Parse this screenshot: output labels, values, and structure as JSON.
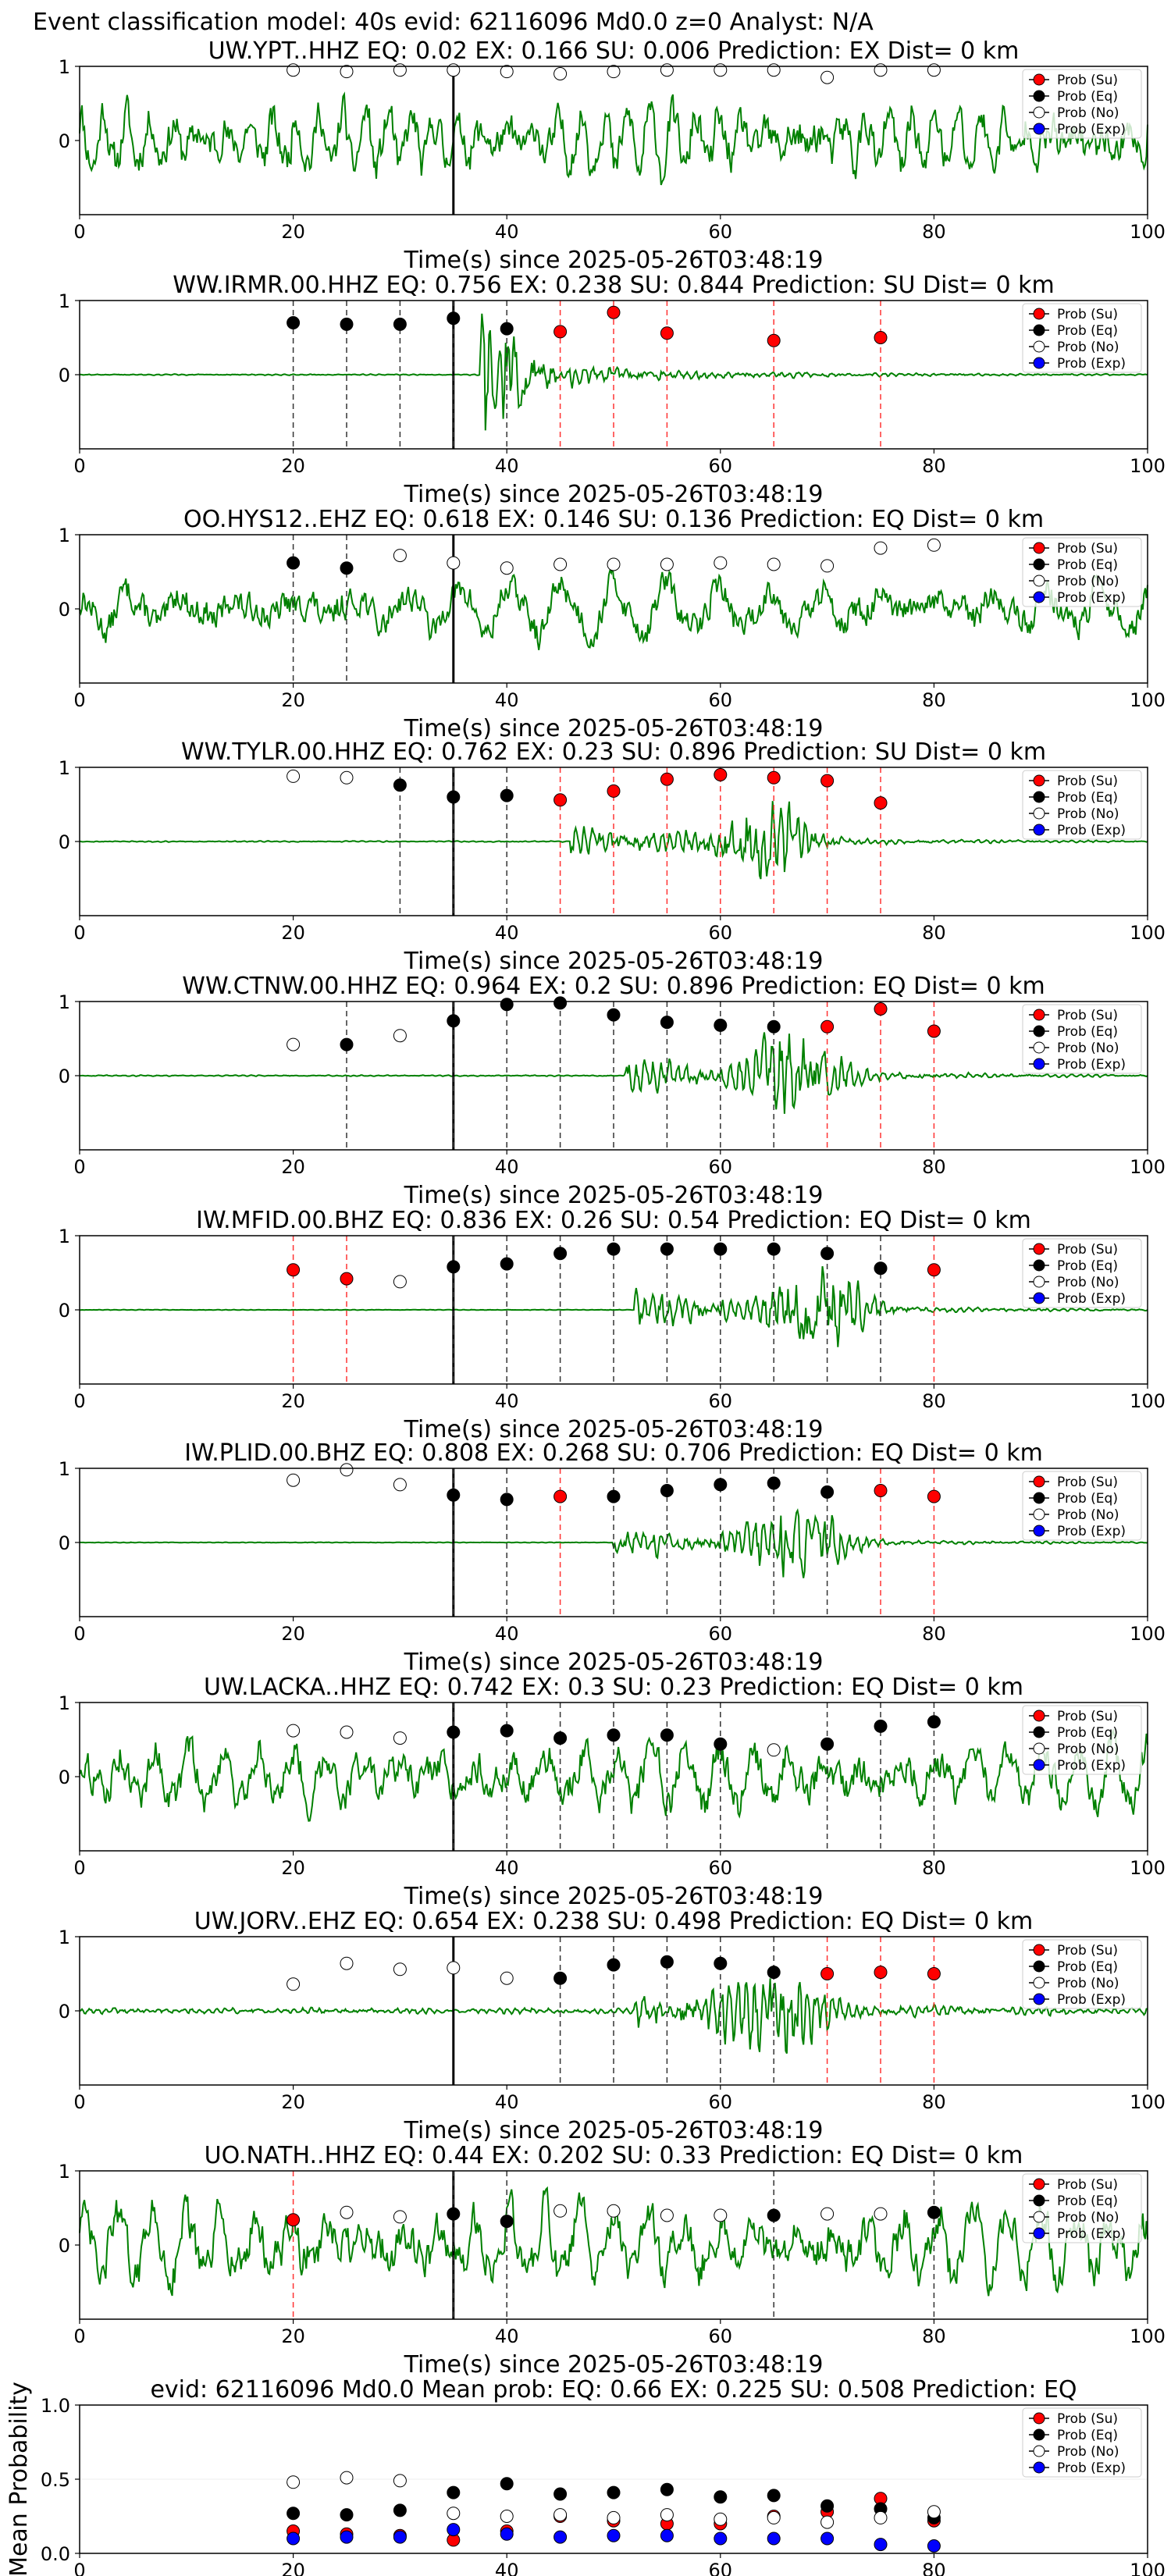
{
  "figure_title": "Event classification model: 40s evid: 62116096 Md0.0 z=0 Analyst: N/A",
  "legend": [
    {
      "label": "Prob (Su)",
      "color": "#ff0000"
    },
    {
      "label": "Prob (Eq)",
      "color": "#000000"
    },
    {
      "label": "Prob (No)",
      "color": "#ffffff"
    },
    {
      "label": "Prob (Exp)",
      "color": "#0000ff"
    }
  ],
  "colors": {
    "waveform": "#008000",
    "su": "#ff0000",
    "eq": "#000000",
    "no": "#ffffff",
    "exp": "#0000ff",
    "pick_line": "#000000"
  },
  "x_axis_label": "Time(s) since 2025-05-26T03:48:19",
  "mean_y_label": "Mean Probability",
  "chart_data": [
    {
      "type": "line",
      "title": "UW.YPT..HHZ   EQ: 0.02   EX: 0.166   SU: 0.006   Prediction: EX    Dist= 0 km",
      "xlim": [
        0,
        100
      ],
      "ylim": [
        -1,
        1
      ],
      "xticks": [
        "0",
        "20",
        "40",
        "60",
        "80",
        "100"
      ],
      "yticks": [
        "1",
        "0"
      ],
      "pick_time": 35,
      "waveform": {
        "onset": 0,
        "peak": 66,
        "noise": 0.55,
        "burst_amp": 0,
        "freq": 1.8,
        "seed": 11
      },
      "windows": [
        20,
        25,
        30,
        35,
        40,
        45,
        50,
        55,
        60,
        65,
        70,
        75,
        80
      ],
      "window_classes": [
        "no",
        "no",
        "no",
        "no",
        "no",
        "no",
        "no",
        "no",
        "no",
        "no",
        "no",
        "no",
        "no"
      ],
      "max_prob": [
        0.95,
        0.93,
        0.95,
        0.95,
        0.93,
        0.9,
        0.93,
        0.95,
        0.95,
        0.95,
        0.85,
        0.95,
        0.95
      ]
    },
    {
      "type": "line",
      "title": "WW.IRMR.00.HHZ   EQ: 0.756   EX: 0.238   SU: 0.844   Prediction: SU    Dist= 0 km",
      "xlim": [
        0,
        100
      ],
      "ylim": [
        -1,
        1
      ],
      "xticks": [
        "0",
        "20",
        "40",
        "60",
        "80",
        "100"
      ],
      "yticks": [
        "1",
        "0"
      ],
      "pick_time": 35,
      "waveform": {
        "onset": 37.5,
        "peak": 38,
        "noise": 0.01,
        "burst_amp": 0.9,
        "freq": 5,
        "seed": 12
      },
      "windows": [
        20,
        25,
        30,
        35,
        40,
        45,
        50,
        55,
        65,
        75
      ],
      "window_classes": [
        "eq",
        "eq",
        "eq",
        "eq",
        "eq",
        "su",
        "su",
        "su",
        "su",
        "su"
      ],
      "max_prob": [
        0.7,
        0.68,
        0.68,
        0.76,
        0.62,
        0.58,
        0.84,
        0.56,
        0.46,
        0.5
      ]
    },
    {
      "type": "line",
      "title": "OO.HYS12..EHZ   EQ: 0.618   EX: 0.146   SU: 0.136   Prediction: EQ    Dist= 0 km",
      "xlim": [
        0,
        100
      ],
      "ylim": [
        -1,
        1
      ],
      "xticks": [
        "0",
        "20",
        "40",
        "60",
        "80",
        "100"
      ],
      "yticks": [
        "1",
        "0"
      ],
      "pick_time": 35,
      "waveform": {
        "onset": 0,
        "peak": 70,
        "noise": 0.45,
        "burst_amp": 0,
        "freq": 0.8,
        "seed": 13
      },
      "windows": [
        20,
        25,
        30,
        35,
        40,
        45,
        50,
        55,
        60,
        65,
        70,
        75,
        80
      ],
      "window_classes": [
        "eq",
        "eq",
        "no",
        "no",
        "no",
        "no",
        "no",
        "no",
        "no",
        "no",
        "no",
        "no",
        "no"
      ],
      "max_prob": [
        0.62,
        0.55,
        0.72,
        0.62,
        0.55,
        0.6,
        0.6,
        0.6,
        0.62,
        0.6,
        0.58,
        0.82,
        0.86
      ]
    },
    {
      "type": "line",
      "title": "WW.TYLR.00.HHZ   EQ: 0.762   EX: 0.23   SU: 0.896   Prediction: SU    Dist= 0 km",
      "xlim": [
        0,
        100
      ],
      "ylim": [
        -1,
        1
      ],
      "xticks": [
        "0",
        "20",
        "40",
        "60",
        "80",
        "100"
      ],
      "yticks": [
        "1",
        "0"
      ],
      "pick_time": 35,
      "waveform": {
        "onset": 46,
        "peak": 64,
        "noise": 0.01,
        "burst_amp": 0.85,
        "freq": 5,
        "seed": 14
      },
      "windows": [
        20,
        25,
        30,
        35,
        40,
        45,
        50,
        55,
        60,
        65,
        70,
        75
      ],
      "window_classes": [
        "no",
        "no",
        "eq",
        "eq",
        "eq",
        "su",
        "su",
        "su",
        "su",
        "su",
        "su",
        "su"
      ],
      "max_prob": [
        0.88,
        0.86,
        0.76,
        0.6,
        0.62,
        0.56,
        0.68,
        0.84,
        0.9,
        0.86,
        0.82,
        0.52
      ]
    },
    {
      "type": "line",
      "title": "WW.CTNW.00.HHZ   EQ: 0.964   EX: 0.2   SU: 0.896   Prediction: EQ    Dist= 0 km",
      "xlim": [
        0,
        100
      ],
      "ylim": [
        -1,
        1
      ],
      "xticks": [
        "0",
        "20",
        "40",
        "60",
        "80",
        "100"
      ],
      "yticks": [
        "1",
        "0"
      ],
      "pick_time": 35,
      "waveform": {
        "onset": 51,
        "peak": 67,
        "noise": 0.01,
        "burst_amp": 0.9,
        "freq": 5,
        "seed": 15
      },
      "windows": [
        20,
        25,
        30,
        35,
        40,
        45,
        50,
        55,
        60,
        65,
        70,
        75,
        80
      ],
      "window_classes": [
        "no",
        "eq",
        "no",
        "eq",
        "eq",
        "eq",
        "eq",
        "eq",
        "eq",
        "eq",
        "su",
        "su",
        "su"
      ],
      "max_prob": [
        0.42,
        0.42,
        0.54,
        0.74,
        0.96,
        0.98,
        0.82,
        0.72,
        0.68,
        0.66,
        0.66,
        0.9,
        0.6
      ]
    },
    {
      "type": "line",
      "title": "IW.MFID.00.BHZ   EQ: 0.836   EX: 0.26   SU: 0.54   Prediction: EQ    Dist= 0 km",
      "xlim": [
        0,
        100
      ],
      "ylim": [
        -1,
        1
      ],
      "xticks": [
        "0",
        "20",
        "40",
        "60",
        "80",
        "100"
      ],
      "yticks": [
        "1",
        "0"
      ],
      "pick_time": 35,
      "waveform": {
        "onset": 52,
        "peak": 69,
        "noise": 0.005,
        "burst_amp": 0.95,
        "freq": 5,
        "seed": 16
      },
      "windows": [
        20,
        25,
        30,
        35,
        40,
        45,
        50,
        55,
        60,
        65,
        70,
        75,
        80
      ],
      "window_classes": [
        "su",
        "su",
        "no",
        "eq",
        "eq",
        "eq",
        "eq",
        "eq",
        "eq",
        "eq",
        "eq",
        "eq",
        "su"
      ],
      "max_prob": [
        0.54,
        0.42,
        0.38,
        0.58,
        0.62,
        0.76,
        0.82,
        0.82,
        0.82,
        0.82,
        0.76,
        0.56,
        0.54
      ]
    },
    {
      "type": "line",
      "title": "IW.PLID.00.BHZ   EQ: 0.808   EX: 0.268   SU: 0.706   Prediction: EQ    Dist= 0 km",
      "xlim": [
        0,
        100
      ],
      "ylim": [
        -1,
        1
      ],
      "xticks": [
        "0",
        "20",
        "40",
        "60",
        "80",
        "100"
      ],
      "yticks": [
        "1",
        "0"
      ],
      "pick_time": 35,
      "waveform": {
        "onset": 50,
        "peak": 67,
        "noise": 0.005,
        "burst_amp": 0.8,
        "freq": 5,
        "seed": 17
      },
      "windows": [
        20,
        25,
        30,
        35,
        40,
        45,
        50,
        55,
        60,
        65,
        70,
        75,
        80
      ],
      "window_classes": [
        "no",
        "no",
        "no",
        "eq",
        "eq",
        "su",
        "eq",
        "eq",
        "eq",
        "eq",
        "eq",
        "su",
        "su"
      ],
      "max_prob": [
        0.84,
        0.98,
        0.78,
        0.64,
        0.58,
        0.62,
        0.62,
        0.7,
        0.78,
        0.8,
        0.68,
        0.7,
        0.62
      ]
    },
    {
      "type": "line",
      "title": "UW.LACKA..HHZ   EQ: 0.742   EX: 0.3   SU: 0.23   Prediction: EQ    Dist= 0 km",
      "xlim": [
        0,
        100
      ],
      "ylim": [
        -1,
        1
      ],
      "xticks": [
        "0",
        "20",
        "40",
        "60",
        "80",
        "100"
      ],
      "yticks": [
        "1",
        "0"
      ],
      "pick_time": 35,
      "waveform": {
        "onset": 0,
        "peak": 88,
        "noise": 0.5,
        "burst_amp": 0,
        "freq": 1.2,
        "seed": 18
      },
      "windows": [
        20,
        25,
        30,
        35,
        40,
        45,
        50,
        55,
        60,
        65,
        70,
        75,
        80
      ],
      "window_classes": [
        "no",
        "no",
        "no",
        "eq",
        "eq",
        "eq",
        "eq",
        "eq",
        "eq",
        "no",
        "eq",
        "eq",
        "eq"
      ],
      "max_prob": [
        0.62,
        0.6,
        0.52,
        0.6,
        0.62,
        0.52,
        0.56,
        0.56,
        0.44,
        0.36,
        0.44,
        0.68,
        0.74
      ]
    },
    {
      "type": "line",
      "title": "UW.JORV..EHZ   EQ: 0.654   EX: 0.238   SU: 0.498   Prediction: EQ    Dist= 0 km",
      "xlim": [
        0,
        100
      ],
      "ylim": [
        -1,
        1
      ],
      "xticks": [
        "0",
        "20",
        "40",
        "60",
        "80",
        "100"
      ],
      "yticks": [
        "1",
        "0"
      ],
      "pick_time": 35,
      "waveform": {
        "onset": 52,
        "peak": 65,
        "noise": 0.05,
        "burst_amp": 0.95,
        "freq": 5,
        "seed": 19
      },
      "windows": [
        20,
        25,
        30,
        35,
        40,
        45,
        50,
        55,
        60,
        65,
        70,
        75,
        80
      ],
      "window_classes": [
        "no",
        "no",
        "no",
        "no",
        "no",
        "eq",
        "eq",
        "eq",
        "eq",
        "eq",
        "su",
        "su",
        "su"
      ],
      "max_prob": [
        0.36,
        0.64,
        0.56,
        0.58,
        0.44,
        0.44,
        0.62,
        0.66,
        0.64,
        0.52,
        0.5,
        0.52,
        0.5
      ]
    },
    {
      "type": "line",
      "title": "UO.NATH..HHZ   EQ: 0.44   EX: 0.202   SU: 0.33   Prediction: EQ    Dist= 0 km",
      "xlim": [
        0,
        100
      ],
      "ylim": [
        -1,
        1
      ],
      "xticks": [
        "0",
        "20",
        "40",
        "60",
        "80",
        "100"
      ],
      "yticks": [
        "1",
        "0"
      ],
      "pick_time": 35,
      "waveform": {
        "onset": 0,
        "peak": 72,
        "noise": 0.6,
        "burst_amp": 0,
        "freq": 1.2,
        "seed": 20
      },
      "windows": [
        20,
        25,
        30,
        35,
        40,
        45,
        50,
        55,
        60,
        65,
        70,
        75,
        80
      ],
      "window_classes": [
        "su",
        "no",
        "no",
        "eq",
        "eq",
        "no",
        "no",
        "no",
        "no",
        "eq",
        "no",
        "no",
        "eq"
      ],
      "max_prob": [
        0.34,
        0.44,
        0.38,
        0.42,
        0.32,
        0.46,
        0.46,
        0.4,
        0.4,
        0.4,
        0.42,
        0.42,
        0.44
      ]
    },
    {
      "type": "scatter",
      "title": "evid: 62116096   Md0.0   Mean prob:   EQ: 0.66   EX: 0.225   SU: 0.508   Prediction: EQ",
      "xlabel": "",
      "ylabel": "Mean Probability",
      "xlim": [
        0,
        100
      ],
      "ylim": [
        0,
        1
      ],
      "xticks": [
        "0",
        "20",
        "40",
        "60",
        "80",
        "100"
      ],
      "yticks": [
        "1.0",
        "0.5",
        "0.0"
      ],
      "x": [
        20,
        25,
        30,
        35,
        40,
        45,
        50,
        55,
        60,
        65,
        70,
        75,
        80
      ],
      "series": [
        {
          "name": "Prob (Su)",
          "color": "#ff0000",
          "values": [
            0.15,
            0.13,
            0.12,
            0.09,
            0.15,
            0.25,
            0.22,
            0.2,
            0.2,
            0.25,
            0.28,
            0.37,
            0.22
          ]
        },
        {
          "name": "Prob (Eq)",
          "color": "#000000",
          "values": [
            0.27,
            0.26,
            0.29,
            0.41,
            0.47,
            0.4,
            0.41,
            0.43,
            0.38,
            0.39,
            0.32,
            0.3,
            0.24
          ]
        },
        {
          "name": "Prob (No)",
          "color": "#ffffff",
          "values": [
            0.48,
            0.51,
            0.49,
            0.27,
            0.25,
            0.26,
            0.24,
            0.26,
            0.23,
            0.24,
            0.21,
            0.24,
            0.28
          ]
        },
        {
          "name": "Prob (Exp)",
          "color": "#0000ff",
          "values": [
            0.1,
            0.11,
            0.11,
            0.16,
            0.13,
            0.11,
            0.12,
            0.12,
            0.1,
            0.1,
            0.1,
            0.06,
            0.05
          ]
        }
      ]
    }
  ]
}
